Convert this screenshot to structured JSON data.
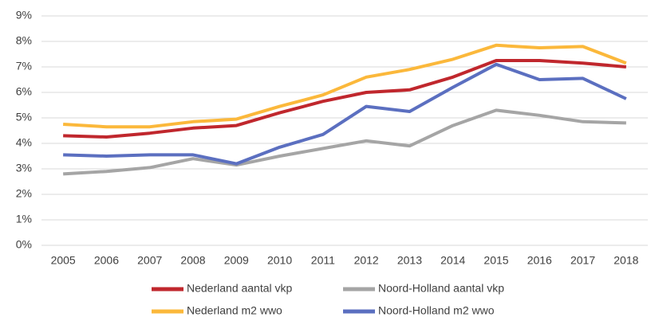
{
  "chart_data": {
    "type": "line",
    "categories": [
      "2005",
      "2006",
      "2007",
      "2008",
      "2009",
      "2010",
      "2011",
      "2012",
      "2013",
      "2014",
      "2015",
      "2016",
      "2017",
      "2018"
    ],
    "series": [
      {
        "name": "Nederland aantal vkp",
        "color": "#c0272d",
        "values": [
          4.3,
          4.25,
          4.4,
          4.6,
          4.7,
          5.2,
          5.65,
          6.0,
          6.1,
          6.6,
          7.25,
          7.25,
          7.15,
          7.0
        ]
      },
      {
        "name": "Noord-Holland aantal vkp",
        "color": "#a5a5a5",
        "values": [
          2.8,
          2.9,
          3.05,
          3.4,
          3.15,
          3.5,
          3.8,
          4.1,
          3.9,
          4.7,
          5.3,
          5.1,
          4.85,
          4.8
        ]
      },
      {
        "name": "Nederland m2 wwo",
        "color": "#fbb83b",
        "values": [
          4.75,
          4.65,
          4.65,
          4.85,
          4.95,
          5.45,
          5.9,
          6.6,
          6.9,
          7.3,
          7.85,
          7.75,
          7.8,
          7.15
        ]
      },
      {
        "name": "Noord-Holland m2 wwo",
        "color": "#5b6fc0",
        "values": [
          3.55,
          3.5,
          3.55,
          3.55,
          3.2,
          3.85,
          4.35,
          5.45,
          5.25,
          6.2,
          7.1,
          6.5,
          6.55,
          5.75
        ]
      }
    ],
    "ylim": [
      0,
      9
    ],
    "yticks": [
      {
        "value": 0,
        "label": "0%"
      },
      {
        "value": 1,
        "label": "1%"
      },
      {
        "value": 2,
        "label": "2%"
      },
      {
        "value": 3,
        "label": "3%"
      },
      {
        "value": 4,
        "label": "4%"
      },
      {
        "value": 5,
        "label": "5%"
      },
      {
        "value": 6,
        "label": "6%"
      },
      {
        "value": 7,
        "label": "7%"
      },
      {
        "value": 8,
        "label": "8%"
      },
      {
        "value": 9,
        "label": "9%"
      }
    ],
    "grid": true
  }
}
